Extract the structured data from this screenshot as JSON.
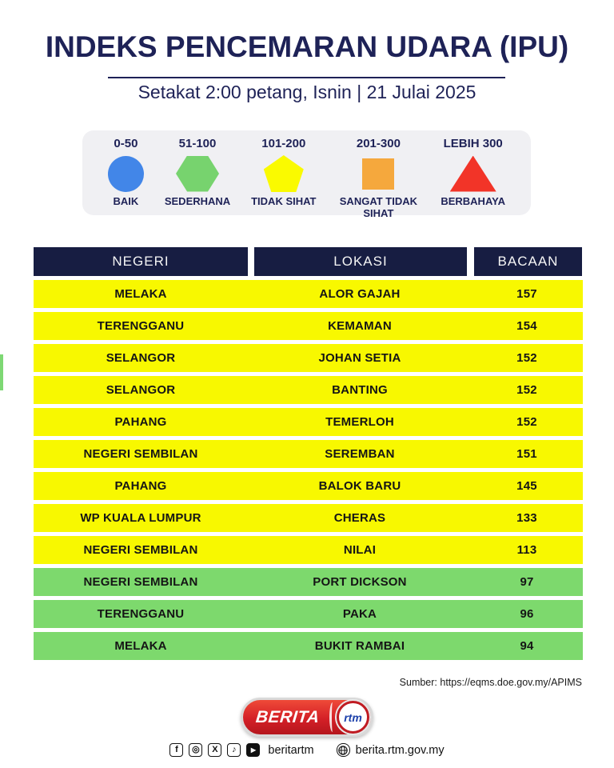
{
  "chart_data": {
    "type": "table",
    "title": "INDEKS PENCEMARAN UDARA (IPU)",
    "subtitle": "Setakat 2:00 petang, Isnin | 21 Julai 2025",
    "columns": [
      "NEGERI",
      "LOKASI",
      "BACAAN"
    ],
    "rows": [
      {
        "negeri": "MELAKA",
        "lokasi": "ALOR GAJAH",
        "bacaan": "157",
        "category": "tidak-sihat"
      },
      {
        "negeri": "TERENGGANU",
        "lokasi": "KEMAMAN",
        "bacaan": "154",
        "category": "tidak-sihat"
      },
      {
        "negeri": "SELANGOR",
        "lokasi": "JOHAN SETIA",
        "bacaan": "152",
        "category": "tidak-sihat"
      },
      {
        "negeri": "SELANGOR",
        "lokasi": "BANTING",
        "bacaan": "152",
        "category": "tidak-sihat"
      },
      {
        "negeri": "PAHANG",
        "lokasi": "TEMERLOH",
        "bacaan": "152",
        "category": "tidak-sihat"
      },
      {
        "negeri": "NEGERI SEMBILAN",
        "lokasi": "SEREMBAN",
        "bacaan": "151",
        "category": "tidak-sihat"
      },
      {
        "negeri": "PAHANG",
        "lokasi": "BALOK BARU",
        "bacaan": "145",
        "category": "tidak-sihat"
      },
      {
        "negeri": "WP KUALA LUMPUR",
        "lokasi": "CHERAS",
        "bacaan": "133",
        "category": "tidak-sihat"
      },
      {
        "negeri": "NEGERI SEMBILAN",
        "lokasi": "NILAI",
        "bacaan": "113",
        "category": "tidak-sihat"
      },
      {
        "negeri": "NEGERI SEMBILAN",
        "lokasi": "PORT DICKSON",
        "bacaan": "97",
        "category": "sederhana"
      },
      {
        "negeri": "TERENGGANU",
        "lokasi": "PAKA",
        "bacaan": "96",
        "category": "sederhana"
      },
      {
        "negeri": "MELAKA",
        "lokasi": "BUKIT RAMBAI",
        "bacaan": "94",
        "category": "sederhana"
      }
    ]
  },
  "legend": {
    "items": [
      {
        "range": "0-50",
        "label": "BAIK",
        "shape": "circle",
        "color": "#4286e8"
      },
      {
        "range": "51-100",
        "label": "SEDERHANA",
        "shape": "hexagon",
        "color": "#77d36e"
      },
      {
        "range": "101-200",
        "label": "TIDAK SIHAT",
        "shape": "pentagon",
        "color": "#fafa00"
      },
      {
        "range": "201-300",
        "label": "SANGAT TIDAK SIHAT",
        "shape": "square",
        "color": "#f5a83d"
      },
      {
        "range": "LEBIH 300",
        "label": "BERBAHAYA",
        "shape": "triangle",
        "color": "#f23428"
      }
    ]
  },
  "colors": {
    "navy": "#1e2257",
    "header_bg": "#171d42",
    "row_colors": {
      "tidak-sihat": "#f8f800",
      "sederhana": "#7dd96d"
    }
  },
  "footer": {
    "source": "Sumber: https://eqms.doe.gov.my/APIMS",
    "logo": {
      "berita": "BERITA",
      "rtm": "rtm"
    },
    "social": {
      "icons": [
        {
          "name": "facebook-icon",
          "glyph": "f",
          "style": "outline"
        },
        {
          "name": "instagram-icon",
          "glyph": "◎",
          "style": "outline"
        },
        {
          "name": "x-icon",
          "glyph": "X",
          "style": "outline"
        },
        {
          "name": "tiktok-icon",
          "glyph": "♪",
          "style": "outline"
        },
        {
          "name": "youtube-icon",
          "glyph": "▶",
          "style": "filled"
        }
      ],
      "handle": "beritartm",
      "website": "berita.rtm.gov.my"
    }
  }
}
